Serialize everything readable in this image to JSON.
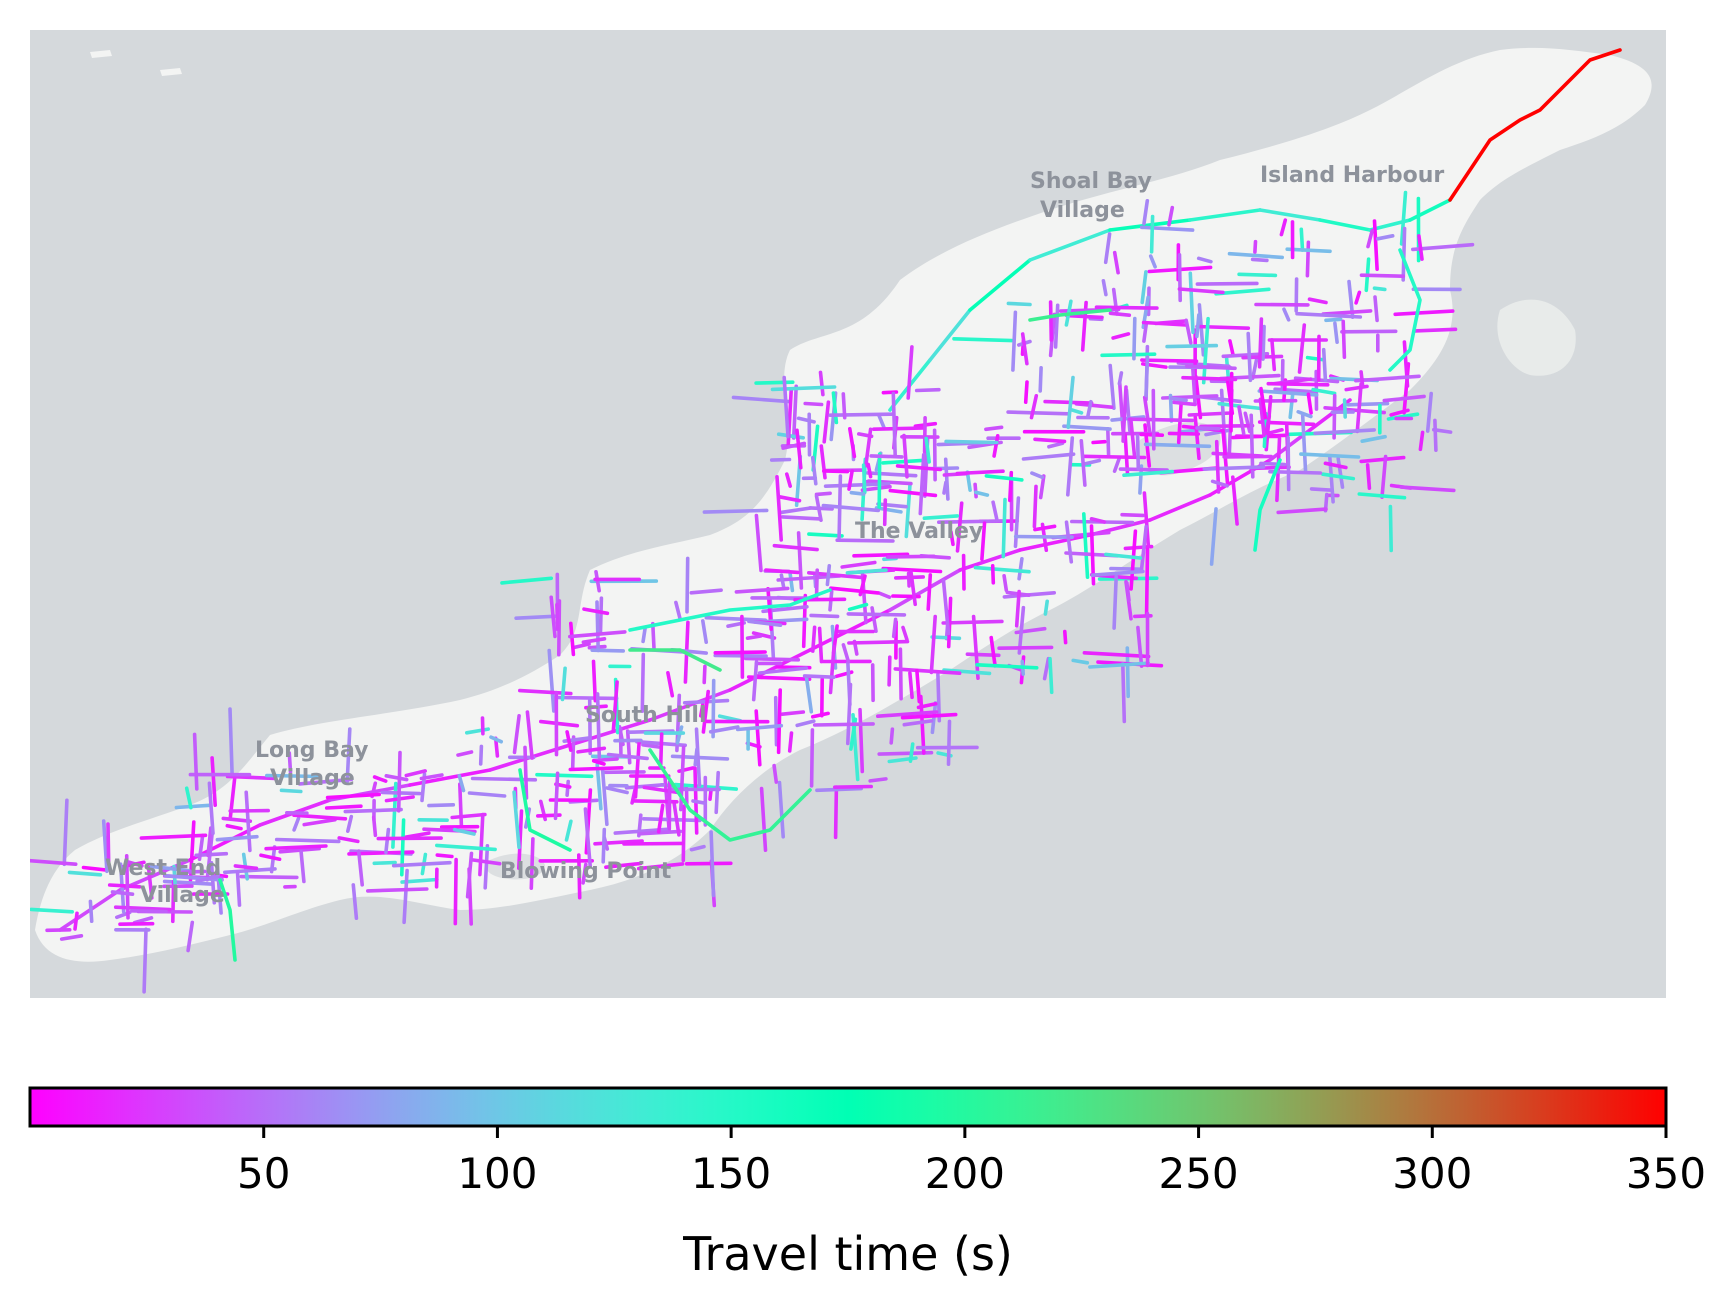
{
  "map": {
    "place_labels": [
      {
        "id": "shoal-bay-village",
        "lines": [
          "Shoal Bay",
          "Village"
        ]
      },
      {
        "id": "island-harbour",
        "lines": [
          "Island Harbour"
        ]
      },
      {
        "id": "the-valley",
        "lines": [
          "The Valley"
        ]
      },
      {
        "id": "south-hill",
        "lines": [
          "South Hill"
        ]
      },
      {
        "id": "long-bay-village",
        "lines": [
          "Long Bay",
          "Village"
        ]
      },
      {
        "id": "west-end-village",
        "lines": [
          "West End",
          "Village"
        ]
      },
      {
        "id": "blowing-point",
        "lines": [
          "Blowing Point"
        ]
      }
    ],
    "colors": {
      "sea": "#d5d9dc",
      "land": "#f3f4f3",
      "pond": "#dcdfe1"
    }
  },
  "chart_data": {
    "type": "heatmap",
    "colormap": "rainbow",
    "colorbar": {
      "label": "Travel time (s)",
      "range": [
        0,
        350
      ],
      "ticks": [
        50,
        100,
        150,
        200,
        250,
        300,
        350
      ],
      "orientation": "horizontal",
      "placement": "bottom"
    },
    "min_value": 0,
    "max_value": 350,
    "highlighted_segment": {
      "location": "north-east tip",
      "value": 350
    }
  }
}
